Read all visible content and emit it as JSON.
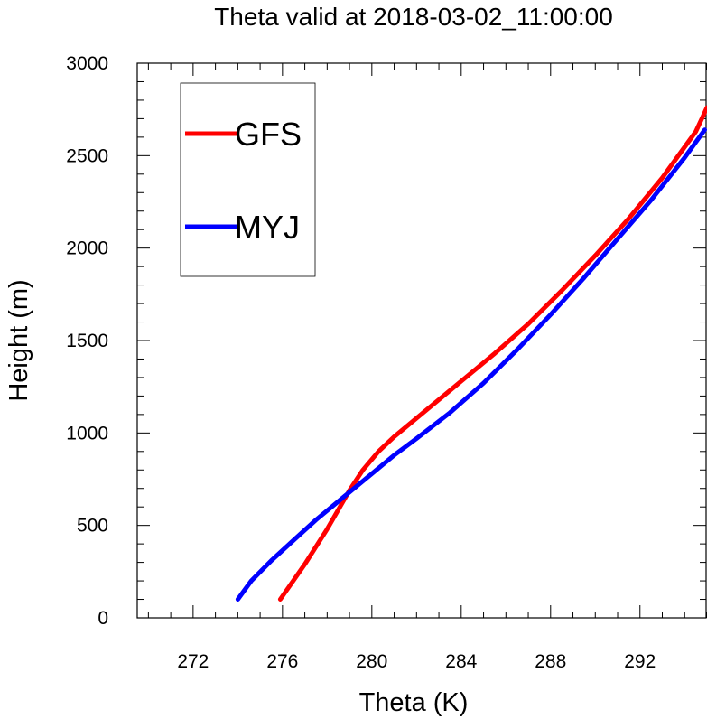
{
  "chart_data": {
    "type": "line",
    "title": "Theta valid at 2018-03-02_11:00:00",
    "xlabel": "Theta (K)",
    "ylabel": "Height (m)",
    "xlim": [
      269.5,
      295
    ],
    "ylim": [
      0,
      3000
    ],
    "x_major_ticks": [
      272,
      276,
      280,
      284,
      288,
      292
    ],
    "y_major_ticks": [
      0,
      500,
      1000,
      1500,
      2000,
      2500,
      3000
    ],
    "grid": false,
    "legend_position": "top-left",
    "series": [
      {
        "name": "GFS",
        "color": "#ff0000",
        "x": [
          275.9,
          277.0,
          278.0,
          279.0,
          279.6,
          280.3,
          281.0,
          282.5,
          284.0,
          285.5,
          287.0,
          288.5,
          290.0,
          291.5,
          293.0,
          294.5,
          295.0
        ],
        "y": [
          100,
          290,
          480,
          690,
          800,
          900,
          980,
          1130,
          1280,
          1430,
          1590,
          1770,
          1960,
          2160,
          2380,
          2630,
          2760
        ]
      },
      {
        "name": "MYJ",
        "color": "#0000ff",
        "x": [
          274.0,
          274.6,
          275.5,
          276.5,
          277.5,
          278.5,
          279.3,
          280.0,
          281.0,
          282.0,
          283.5,
          285.0,
          286.5,
          288.0,
          289.5,
          291.0,
          292.5,
          294.0,
          294.9
        ],
        "y": [
          100,
          200,
          310,
          420,
          530,
          630,
          710,
          780,
          880,
          970,
          1110,
          1270,
          1450,
          1640,
          1840,
          2050,
          2260,
          2490,
          2640
        ]
      }
    ]
  }
}
